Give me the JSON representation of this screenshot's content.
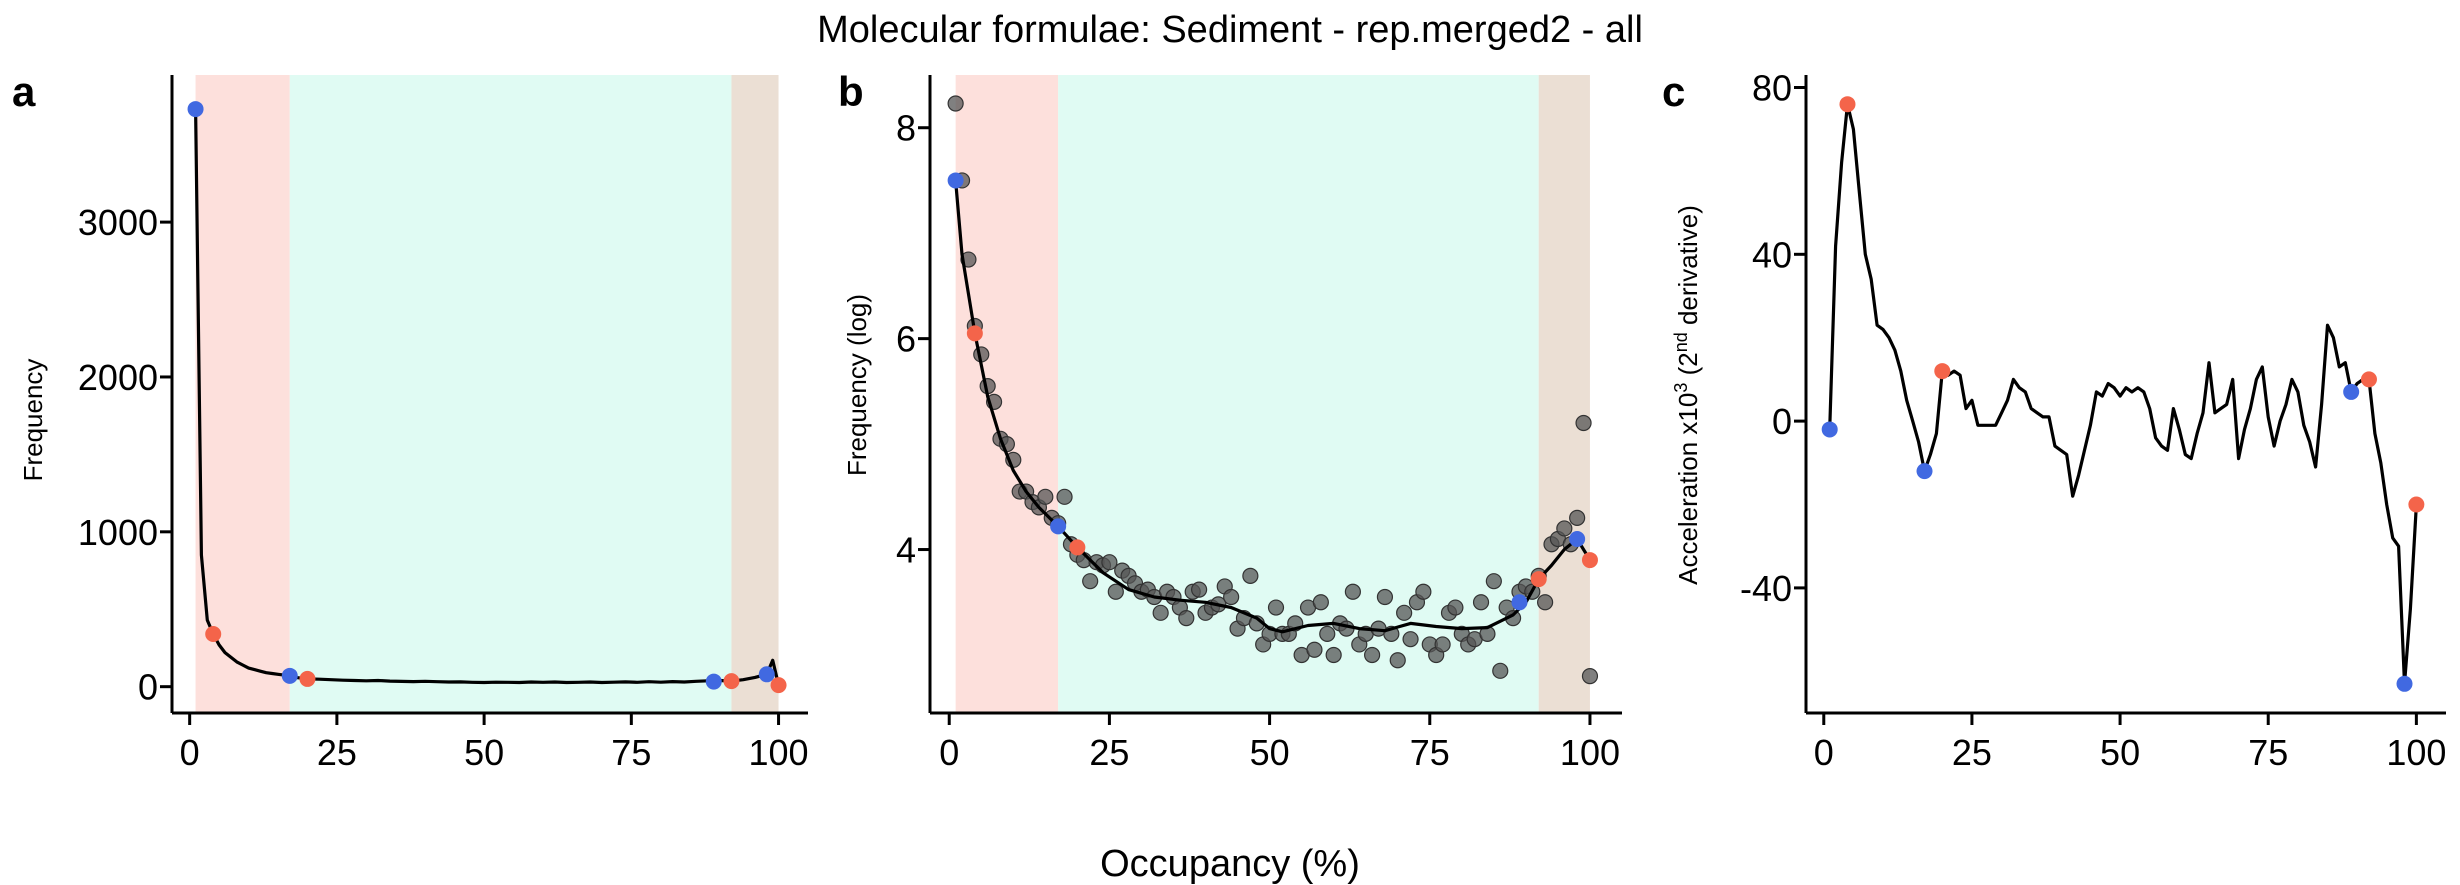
{
  "figure": {
    "title": "Molecular formulae: Sediment - rep.merged2 - all",
    "xlabel": "Occupancy (%)"
  },
  "chart_data": [
    {
      "panel": "a",
      "type": "line",
      "ylabel": "Frequency",
      "xlim": [
        -3,
        105
      ],
      "ylim": [
        -170,
        3950
      ],
      "xticks": [
        0,
        25,
        50,
        75,
        100
      ],
      "yticks": [
        0,
        1000,
        2000,
        3000
      ],
      "regions": [
        {
          "from": 1,
          "to": 17,
          "color": "#fde0dc"
        },
        {
          "from": 17,
          "to": 92,
          "color": "#e0fbf3"
        },
        {
          "from": 92,
          "to": 100,
          "color": "#ebdfd4"
        }
      ],
      "line": {
        "x": [
          1,
          2,
          3,
          4,
          5,
          6,
          7,
          8,
          9,
          10,
          11,
          12,
          13,
          14,
          15,
          16,
          17,
          18,
          19,
          20,
          22,
          24,
          26,
          28,
          30,
          32,
          34,
          36,
          38,
          40,
          42,
          44,
          46,
          48,
          50,
          52,
          54,
          56,
          58,
          60,
          62,
          64,
          66,
          68,
          70,
          72,
          74,
          76,
          78,
          80,
          82,
          84,
          86,
          88,
          89,
          90,
          92,
          94,
          96,
          98,
          99,
          100
        ],
        "y": [
          3730,
          850,
          430,
          340,
          270,
          220,
          190,
          160,
          140,
          120,
          110,
          100,
          90,
          85,
          80,
          75,
          70,
          60,
          55,
          50,
          48,
          45,
          42,
          40,
          38,
          40,
          36,
          34,
          33,
          35,
          32,
          30,
          31,
          28,
          27,
          29,
          28,
          27,
          30,
          28,
          30,
          27,
          28,
          30,
          27,
          29,
          31,
          28,
          32,
          29,
          33,
          30,
          35,
          38,
          33,
          40,
          36,
          45,
          60,
          80,
          170,
          10
        ]
      },
      "points": [
        {
          "x": 1,
          "y": 3730,
          "color": "#4169e1"
        },
        {
          "x": 4,
          "y": 340,
          "color": "#f4644a"
        },
        {
          "x": 17,
          "y": 70,
          "color": "#4169e1"
        },
        {
          "x": 20,
          "y": 50,
          "color": "#f4644a"
        },
        {
          "x": 89,
          "y": 33,
          "color": "#4169e1"
        },
        {
          "x": 92,
          "y": 36,
          "color": "#f4644a"
        },
        {
          "x": 98,
          "y": 80,
          "color": "#4169e1"
        },
        {
          "x": 100,
          "y": 10,
          "color": "#f4644a"
        }
      ]
    },
    {
      "panel": "b",
      "type": "scatter",
      "ylabel": "Frequency (log)",
      "xlim": [
        -3,
        105
      ],
      "ylim": [
        2.45,
        8.5
      ],
      "xticks": [
        0,
        25,
        50,
        75,
        100
      ],
      "yticks": [
        4,
        6,
        8
      ],
      "regions": [
        {
          "from": 1,
          "to": 17,
          "color": "#fde0dc"
        },
        {
          "from": 17,
          "to": 92,
          "color": "#e0fbf3"
        },
        {
          "from": 92,
          "to": 100,
          "color": "#ebdfd4"
        }
      ],
      "scatter": {
        "color": "#555555",
        "x": [
          1,
          2,
          3,
          4,
          5,
          6,
          7,
          8,
          9,
          10,
          11,
          12,
          13,
          14,
          15,
          16,
          17,
          18,
          19,
          20,
          21,
          22,
          23,
          24,
          25,
          26,
          27,
          28,
          29,
          30,
          31,
          32,
          33,
          34,
          35,
          36,
          37,
          38,
          39,
          40,
          41,
          42,
          43,
          44,
          45,
          46,
          47,
          48,
          49,
          50,
          51,
          52,
          53,
          54,
          55,
          56,
          57,
          58,
          59,
          60,
          61,
          62,
          63,
          64,
          65,
          66,
          67,
          68,
          69,
          70,
          71,
          72,
          73,
          74,
          75,
          76,
          77,
          78,
          79,
          80,
          81,
          82,
          83,
          84,
          85,
          86,
          87,
          88,
          89,
          90,
          91,
          92,
          93,
          94,
          95,
          96,
          97,
          98,
          99,
          100
        ],
        "y": [
          8.23,
          7.5,
          6.75,
          6.12,
          5.85,
          5.55,
          5.4,
          5.05,
          5.0,
          4.85,
          4.55,
          4.55,
          4.45,
          4.4,
          4.5,
          4.3,
          4.25,
          4.5,
          4.05,
          3.95,
          3.9,
          3.7,
          3.88,
          3.85,
          3.88,
          3.6,
          3.8,
          3.75,
          3.68,
          3.6,
          3.62,
          3.55,
          3.4,
          3.6,
          3.55,
          3.45,
          3.35,
          3.6,
          3.62,
          3.4,
          3.45,
          3.48,
          3.65,
          3.55,
          3.25,
          3.35,
          3.75,
          3.3,
          3.1,
          3.2,
          3.45,
          3.2,
          3.2,
          3.3,
          3.0,
          3.45,
          3.05,
          3.5,
          3.2,
          3.0,
          3.3,
          3.25,
          3.6,
          3.1,
          3.2,
          3.0,
          3.25,
          3.55,
          3.2,
          2.95,
          3.4,
          3.15,
          3.5,
          3.6,
          3.1,
          3.0,
          3.1,
          3.4,
          3.45,
          3.2,
          3.1,
          3.15,
          3.5,
          3.2,
          3.7,
          2.85,
          3.45,
          3.35,
          3.6,
          3.65,
          3.6,
          3.75,
          3.5,
          4.05,
          4.1,
          4.2,
          4.05,
          4.3,
          5.2,
          2.8
        ]
      },
      "line": {
        "x": [
          1,
          2,
          4,
          6,
          8,
          10,
          12,
          14,
          17,
          20,
          24,
          28,
          32,
          36,
          40,
          44,
          48,
          50,
          52,
          56,
          60,
          64,
          68,
          72,
          76,
          80,
          84,
          88,
          90,
          92,
          94,
          96,
          98,
          100
        ],
        "y": [
          7.5,
          6.8,
          6.05,
          5.45,
          5.05,
          4.75,
          4.55,
          4.4,
          4.22,
          4.02,
          3.78,
          3.62,
          3.55,
          3.52,
          3.5,
          3.45,
          3.35,
          3.25,
          3.22,
          3.28,
          3.3,
          3.25,
          3.23,
          3.3,
          3.27,
          3.25,
          3.26,
          3.38,
          3.5,
          3.72,
          3.85,
          4.0,
          4.1,
          3.9
        ]
      },
      "points": [
        {
          "x": 1,
          "y": 7.5,
          "color": "#4169e1"
        },
        {
          "x": 4,
          "y": 6.05,
          "color": "#f4644a"
        },
        {
          "x": 17,
          "y": 4.22,
          "color": "#4169e1"
        },
        {
          "x": 20,
          "y": 4.02,
          "color": "#f4644a"
        },
        {
          "x": 89,
          "y": 3.5,
          "color": "#4169e1"
        },
        {
          "x": 92,
          "y": 3.72,
          "color": "#f4644a"
        },
        {
          "x": 98,
          "y": 4.1,
          "color": "#4169e1"
        },
        {
          "x": 100,
          "y": 3.9,
          "color": "#f4644a"
        }
      ]
    },
    {
      "panel": "c",
      "type": "line",
      "ylabel": "Acceleration x10",
      "ylabel_sup1": "3",
      "ylabel_mid": " (2",
      "ylabel_sup2": "nd",
      "ylabel_end": " derivative)",
      "xlim": [
        -3,
        105
      ],
      "ylim": [
        -70,
        83
      ],
      "xticks": [
        0,
        25,
        50,
        75,
        100
      ],
      "yticks": [
        -40,
        0,
        40,
        80
      ],
      "line": {
        "x": [
          1,
          2,
          3,
          4,
          5,
          6,
          7,
          8,
          9,
          10,
          11,
          12,
          13,
          14,
          15,
          16,
          17,
          18,
          19,
          20,
          21,
          22,
          23,
          24,
          25,
          26,
          27,
          28,
          29,
          30,
          31,
          32,
          33,
          34,
          35,
          36,
          37,
          38,
          39,
          40,
          41,
          42,
          43,
          44,
          45,
          46,
          47,
          48,
          49,
          50,
          51,
          52,
          53,
          54,
          55,
          56,
          57,
          58,
          59,
          60,
          61,
          62,
          63,
          64,
          65,
          66,
          67,
          68,
          69,
          70,
          71,
          72,
          73,
          74,
          75,
          76,
          77,
          78,
          79,
          80,
          81,
          82,
          83,
          84,
          85,
          86,
          87,
          88,
          89,
          90,
          91,
          92,
          93,
          94,
          95,
          96,
          97,
          98,
          99,
          100
        ],
        "y": [
          -2,
          42,
          62,
          76,
          70,
          55,
          40,
          34,
          23,
          22,
          20,
          17,
          12,
          5,
          0,
          -5,
          -12,
          -8,
          -3,
          12,
          11,
          12,
          11,
          3,
          5,
          -1,
          -1,
          -1,
          -1,
          2,
          5,
          10,
          8,
          7,
          3,
          2,
          1,
          1,
          -6,
          -7,
          -8,
          -18,
          -13,
          -7,
          -1,
          7,
          6,
          9,
          8,
          6,
          8,
          7,
          8,
          7,
          3,
          -4,
          -6,
          -7,
          3,
          -2,
          -8,
          -9,
          -3,
          2,
          14,
          2,
          3,
          4,
          10,
          -9,
          -2,
          3,
          10,
          13,
          1,
          -6,
          0,
          4,
          10,
          7,
          -1,
          -5,
          -11,
          4,
          23,
          20,
          13,
          14,
          7,
          9,
          10,
          10,
          -3,
          -10,
          -20,
          -28,
          -30,
          -63,
          -45,
          -20
        ]
      },
      "points": [
        {
          "x": 1,
          "y": -2,
          "color": "#4169e1"
        },
        {
          "x": 4,
          "y": 76,
          "color": "#f4644a"
        },
        {
          "x": 17,
          "y": -12,
          "color": "#4169e1"
        },
        {
          "x": 20,
          "y": 12,
          "color": "#f4644a"
        },
        {
          "x": 89,
          "y": 7,
          "color": "#4169e1"
        },
        {
          "x": 92,
          "y": 10,
          "color": "#f4644a"
        },
        {
          "x": 98,
          "y": -63,
          "color": "#4169e1"
        },
        {
          "x": 100,
          "y": -20,
          "color": "#f4644a"
        }
      ]
    }
  ]
}
